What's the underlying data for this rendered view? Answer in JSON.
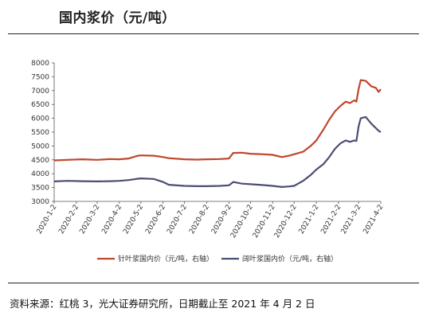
{
  "title": "国内浆价（元/吨）",
  "footer": "资料来源：红桃 3，光大证券研究所，日期截止至 2021 年 4 月 2 日",
  "chart_data": {
    "type": "line",
    "title": "国内浆价（元/吨）",
    "xlabel": "",
    "ylabel": "",
    "ylim": [
      3000,
      8000
    ],
    "yticks": [
      3000,
      3500,
      4000,
      4500,
      5000,
      5500,
      6000,
      6500,
      7000,
      7500,
      8000
    ],
    "xrange": [
      "2020-1-2",
      "2021-4-2"
    ],
    "xticks": [
      "2020-1-2",
      "2020-2-2",
      "2020-3-2",
      "2020-4-2",
      "2020-5-2",
      "2020-6-2",
      "2020-7-2",
      "2020-8-2",
      "2020-9-2",
      "2020-10-2",
      "2020-11-2",
      "2020-12-2",
      "2021-1-2",
      "2021-2-2",
      "2021-3-2",
      "2021-4-2"
    ],
    "grid": false,
    "legend_position": "bottom",
    "series": [
      {
        "name": "针叶浆国内价（元/吨，右轴）",
        "color": "#c0462c",
        "points": [
          [
            "2020-1-2",
            4480
          ],
          [
            "2020-1-20",
            4500
          ],
          [
            "2020-2-10",
            4520
          ],
          [
            "2020-3-2",
            4500
          ],
          [
            "2020-3-20",
            4530
          ],
          [
            "2020-4-2",
            4520
          ],
          [
            "2020-4-15",
            4550
          ],
          [
            "2020-4-28",
            4650
          ],
          [
            "2020-5-2",
            4660
          ],
          [
            "2020-5-20",
            4650
          ],
          [
            "2020-6-2",
            4600
          ],
          [
            "2020-6-10",
            4560
          ],
          [
            "2020-7-2",
            4520
          ],
          [
            "2020-7-20",
            4510
          ],
          [
            "2020-8-2",
            4520
          ],
          [
            "2020-8-20",
            4530
          ],
          [
            "2020-9-2",
            4550
          ],
          [
            "2020-9-8",
            4750
          ],
          [
            "2020-9-20",
            4760
          ],
          [
            "2020-10-2",
            4720
          ],
          [
            "2020-10-20",
            4700
          ],
          [
            "2020-11-2",
            4680
          ],
          [
            "2020-11-15",
            4600
          ],
          [
            "2020-11-25",
            4650
          ],
          [
            "2020-12-2",
            4700
          ],
          [
            "2020-12-15",
            4800
          ],
          [
            "2020-12-25",
            5000
          ],
          [
            "2021-1-2",
            5200
          ],
          [
            "2021-1-12",
            5600
          ],
          [
            "2021-1-20",
            5950
          ],
          [
            "2021-1-28",
            6250
          ],
          [
            "2021-2-5",
            6450
          ],
          [
            "2021-2-12",
            6600
          ],
          [
            "2021-2-18",
            6550
          ],
          [
            "2021-2-24",
            6650
          ],
          [
            "2021-2-27",
            6600
          ],
          [
            "2021-3-2",
            7050
          ],
          [
            "2021-3-5",
            7380
          ],
          [
            "2021-3-12",
            7350
          ],
          [
            "2021-3-20",
            7150
          ],
          [
            "2021-3-26",
            7100
          ],
          [
            "2021-3-30",
            6950
          ],
          [
            "2021-4-2",
            7050
          ]
        ]
      },
      {
        "name": "阔叶浆国内价（元/吨，右轴）",
        "color": "#4b4e73",
        "points": [
          [
            "2020-1-2",
            3720
          ],
          [
            "2020-1-20",
            3740
          ],
          [
            "2020-2-10",
            3730
          ],
          [
            "2020-3-2",
            3720
          ],
          [
            "2020-3-20",
            3730
          ],
          [
            "2020-4-2",
            3740
          ],
          [
            "2020-4-15",
            3770
          ],
          [
            "2020-4-28",
            3820
          ],
          [
            "2020-5-2",
            3830
          ],
          [
            "2020-5-20",
            3810
          ],
          [
            "2020-6-2",
            3700
          ],
          [
            "2020-6-10",
            3600
          ],
          [
            "2020-7-2",
            3560
          ],
          [
            "2020-7-20",
            3550
          ],
          [
            "2020-8-2",
            3550
          ],
          [
            "2020-8-20",
            3560
          ],
          [
            "2020-9-2",
            3580
          ],
          [
            "2020-9-8",
            3700
          ],
          [
            "2020-9-20",
            3640
          ],
          [
            "2020-10-2",
            3620
          ],
          [
            "2020-10-20",
            3590
          ],
          [
            "2020-11-2",
            3560
          ],
          [
            "2020-11-15",
            3520
          ],
          [
            "2020-11-25",
            3540
          ],
          [
            "2020-12-2",
            3560
          ],
          [
            "2020-12-15",
            3750
          ],
          [
            "2020-12-25",
            3950
          ],
          [
            "2021-1-2",
            4150
          ],
          [
            "2021-1-12",
            4350
          ],
          [
            "2021-1-20",
            4600
          ],
          [
            "2021-1-28",
            4900
          ],
          [
            "2021-2-5",
            5100
          ],
          [
            "2021-2-12",
            5200
          ],
          [
            "2021-2-18",
            5150
          ],
          [
            "2021-2-24",
            5200
          ],
          [
            "2021-2-27",
            5180
          ],
          [
            "2021-3-2",
            5700
          ],
          [
            "2021-3-5",
            6000
          ],
          [
            "2021-3-12",
            6050
          ],
          [
            "2021-3-20",
            5800
          ],
          [
            "2021-3-26",
            5650
          ],
          [
            "2021-3-30",
            5550
          ],
          [
            "2021-4-2",
            5500
          ]
        ]
      }
    ]
  }
}
